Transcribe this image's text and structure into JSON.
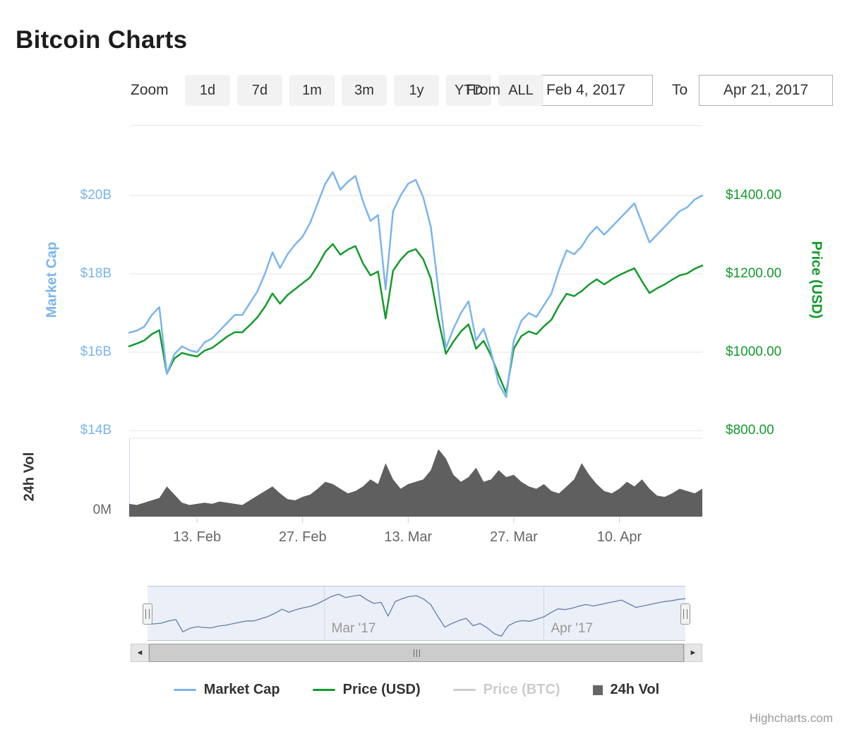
{
  "title": "Bitcoin Charts",
  "toolbar": {
    "zoom_label": "Zoom",
    "buttons": [
      "1d",
      "7d",
      "1m",
      "3m",
      "1y",
      "YTD",
      "ALL"
    ],
    "from_label": "From",
    "from_value": "Feb 4, 2017",
    "to_label": "To",
    "to_value": "Apr 21, 2017"
  },
  "scrollbar": {
    "left_arrow": "◄",
    "right_arrow": "►"
  },
  "legend": [
    {
      "label": "Market Cap",
      "color": "#7cb5ec",
      "type": "line",
      "enabled": true,
      "text_color": "#333333"
    },
    {
      "label": "Price (USD)",
      "color": "#139b2c",
      "type": "line",
      "enabled": true,
      "text_color": "#333333"
    },
    {
      "label": "Price (BTC)",
      "color": "#cccccc",
      "type": "line",
      "enabled": false,
      "text_color": "#cccccc"
    },
    {
      "label": "24h Vol",
      "color": "#666666",
      "type": "box",
      "enabled": true,
      "text_color": "#333333"
    }
  ],
  "credits": "Highcharts.com",
  "chart_data": {
    "type": "line",
    "title": "Bitcoin Charts",
    "x_start": "2017-02-04",
    "x_end": "2017-04-21",
    "x_tick_labels": [
      "13. Feb",
      "27. Feb",
      "13. Mar",
      "27. Mar",
      "10. Apr"
    ],
    "x_tick_dates": [
      "2017-02-13",
      "2017-02-27",
      "2017-03-13",
      "2017-03-27",
      "2017-04-10"
    ],
    "left_axis": {
      "title": "Market Cap",
      "ticks": [
        "$20B",
        "$18B",
        "$16B",
        "$14B"
      ],
      "min": 14,
      "max": 21,
      "unit": "USD billions"
    },
    "right_axis": {
      "title": "Price (USD)",
      "ticks": [
        "$1400.00",
        "$1200.00",
        "$1000.00",
        "$800.00"
      ],
      "min": 800,
      "max": 1500
    },
    "vol_axis": {
      "title": "24h Vol",
      "ticks": [
        "0M"
      ],
      "min": 0,
      "max": 320,
      "unit": "USD millions"
    },
    "navigator_labels": [
      "Mar '17",
      "Apr '17"
    ],
    "navigator_tick_dates": [
      "2017-03-01",
      "2017-04-01"
    ],
    "grid": true,
    "legend_position": "bottom",
    "colors": {
      "market_cap": "#7cb5ec",
      "price_usd": "#139b2c",
      "volume": "#5f5f5f",
      "navigator": "#667db0",
      "nav_mask": "rgba(102,133,194,0.13)"
    },
    "dates": [
      "2017-02-04",
      "2017-02-05",
      "2017-02-06",
      "2017-02-07",
      "2017-02-08",
      "2017-02-09",
      "2017-02-10",
      "2017-02-11",
      "2017-02-12",
      "2017-02-13",
      "2017-02-14",
      "2017-02-15",
      "2017-02-16",
      "2017-02-17",
      "2017-02-18",
      "2017-02-19",
      "2017-02-20",
      "2017-02-21",
      "2017-02-22",
      "2017-02-23",
      "2017-02-24",
      "2017-02-25",
      "2017-02-26",
      "2017-02-27",
      "2017-02-28",
      "2017-03-01",
      "2017-03-02",
      "2017-03-03",
      "2017-03-04",
      "2017-03-05",
      "2017-03-06",
      "2017-03-07",
      "2017-03-08",
      "2017-03-09",
      "2017-03-10",
      "2017-03-11",
      "2017-03-12",
      "2017-03-13",
      "2017-03-14",
      "2017-03-15",
      "2017-03-16",
      "2017-03-17",
      "2017-03-18",
      "2017-03-19",
      "2017-03-20",
      "2017-03-21",
      "2017-03-22",
      "2017-03-23",
      "2017-03-24",
      "2017-03-25",
      "2017-03-26",
      "2017-03-27",
      "2017-03-28",
      "2017-03-29",
      "2017-03-30",
      "2017-03-31",
      "2017-04-01",
      "2017-04-02",
      "2017-04-03",
      "2017-04-04",
      "2017-04-05",
      "2017-04-06",
      "2017-04-07",
      "2017-04-08",
      "2017-04-09",
      "2017-04-10",
      "2017-04-11",
      "2017-04-12",
      "2017-04-13",
      "2017-04-14",
      "2017-04-15",
      "2017-04-16",
      "2017-04-17",
      "2017-04-18",
      "2017-04-19",
      "2017-04-20",
      "2017-04-21"
    ],
    "series": [
      {
        "name": "Market Cap",
        "unit": "$B",
        "axis": "left",
        "values": [
          16.5,
          16.55,
          16.65,
          16.95,
          17.15,
          15.45,
          15.95,
          16.15,
          16.05,
          16.0,
          16.25,
          16.35,
          16.55,
          16.75,
          16.95,
          16.95,
          17.25,
          17.55,
          18.0,
          18.55,
          18.15,
          18.5,
          18.75,
          18.95,
          19.3,
          19.8,
          20.3,
          20.6,
          20.15,
          20.35,
          20.5,
          19.85,
          19.35,
          19.5,
          17.6,
          19.6,
          20.0,
          20.3,
          20.4,
          19.95,
          19.2,
          17.6,
          16.1,
          16.6,
          17.0,
          17.3,
          16.3,
          16.6,
          16.0,
          15.2,
          14.85,
          16.3,
          16.8,
          17.0,
          16.9,
          17.2,
          17.5,
          18.1,
          18.6,
          18.5,
          18.7,
          19.0,
          19.2,
          19.0,
          19.2,
          19.4,
          19.6,
          19.8,
          19.3,
          18.8,
          19.0,
          19.2,
          19.4,
          19.6,
          19.7,
          19.9,
          20.0
        ]
      },
      {
        "name": "Price (USD)",
        "unit": "$",
        "axis": "right",
        "values": [
          1015,
          1022,
          1030,
          1046,
          1056,
          945,
          984,
          998,
          993,
          989,
          1004,
          1011,
          1025,
          1040,
          1051,
          1051,
          1069,
          1089,
          1116,
          1150,
          1124,
          1146,
          1161,
          1176,
          1191,
          1221,
          1256,
          1276,
          1249,
          1262,
          1271,
          1227,
          1196,
          1206,
          1086,
          1208,
          1236,
          1256,
          1263,
          1237,
          1188,
          1083,
          996,
          1027,
          1053,
          1071,
          1009,
          1029,
          991,
          941,
          896,
          1009,
          1041,
          1053,
          1046,
          1066,
          1083,
          1119,
          1149,
          1143,
          1156,
          1173,
          1186,
          1173,
          1186,
          1197,
          1206,
          1214,
          1181,
          1151,
          1163,
          1173,
          1185,
          1196,
          1201,
          1213,
          1221
        ]
      },
      {
        "name": "24h Vol",
        "unit": "$M",
        "axis": "volume",
        "values": [
          55,
          50,
          60,
          70,
          80,
          130,
          95,
          60,
          50,
          55,
          60,
          55,
          65,
          60,
          55,
          50,
          70,
          90,
          110,
          130,
          100,
          75,
          70,
          85,
          95,
          120,
          150,
          140,
          120,
          100,
          110,
          130,
          160,
          140,
          230,
          160,
          120,
          140,
          150,
          160,
          200,
          290,
          250,
          180,
          150,
          170,
          210,
          150,
          160,
          200,
          170,
          180,
          150,
          130,
          120,
          140,
          110,
          100,
          130,
          160,
          230,
          180,
          140,
          110,
          100,
          120,
          150,
          130,
          160,
          120,
          90,
          85,
          100,
          120,
          110,
          100,
          120
        ]
      }
    ]
  }
}
